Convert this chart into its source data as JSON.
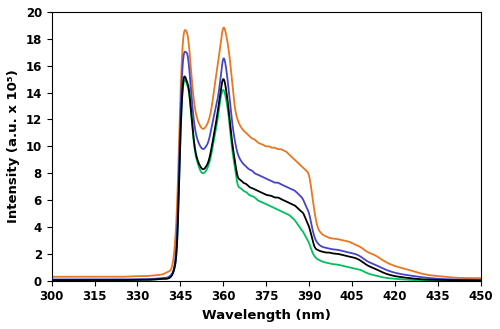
{
  "title": "",
  "xlabel": "Wavelength (nm)",
  "ylabel": "Intensity (a.u. x 10⁵)",
  "xlim": [
    300,
    450
  ],
  "ylim": [
    0,
    20
  ],
  "xticks": [
    300,
    315,
    330,
    345,
    360,
    375,
    390,
    405,
    420,
    435,
    450
  ],
  "yticks": [
    0,
    2,
    4,
    6,
    8,
    10,
    12,
    14,
    16,
    18,
    20
  ],
  "colors": {
    "orange": "#E87722",
    "blue": "#4545C8",
    "black": "#000000",
    "green": "#00C060"
  },
  "line_width": 1.3,
  "background": "#ffffff",
  "series": {
    "orange": {
      "x": [
        300,
        305,
        310,
        315,
        320,
        325,
        330,
        333,
        336,
        339,
        341,
        342,
        343,
        344,
        345,
        346,
        347,
        347.5,
        348,
        349,
        350,
        351,
        352,
        353,
        354,
        355,
        356,
        357,
        358,
        359,
        360,
        361,
        362,
        363,
        364,
        365,
        366,
        367,
        368,
        369,
        370,
        371,
        372,
        373,
        374,
        375,
        376,
        377,
        378,
        379,
        380,
        381,
        382,
        383,
        384,
        385,
        386,
        387,
        388,
        389,
        390,
        391,
        392,
        393,
        394,
        395,
        396,
        397,
        398,
        400,
        402,
        404,
        406,
        408,
        410,
        413,
        416,
        420,
        425,
        430,
        435,
        440,
        445,
        450
      ],
      "y": [
        0.3,
        0.3,
        0.3,
        0.3,
        0.3,
        0.3,
        0.35,
        0.35,
        0.4,
        0.5,
        0.7,
        1.0,
        2.5,
        6.5,
        13.5,
        18.0,
        18.6,
        18.3,
        17.5,
        15.0,
        13.0,
        12.0,
        11.5,
        11.3,
        11.5,
        12.0,
        13.0,
        14.5,
        16.0,
        17.5,
        18.8,
        18.3,
        17.0,
        15.0,
        13.0,
        12.0,
        11.5,
        11.2,
        11.0,
        10.8,
        10.6,
        10.5,
        10.3,
        10.2,
        10.1,
        10.0,
        10.0,
        9.9,
        9.9,
        9.8,
        9.8,
        9.7,
        9.6,
        9.4,
        9.2,
        9.0,
        8.8,
        8.6,
        8.4,
        8.2,
        7.8,
        6.5,
        5.0,
        4.0,
        3.6,
        3.4,
        3.3,
        3.2,
        3.15,
        3.1,
        3.0,
        2.9,
        2.7,
        2.5,
        2.2,
        1.9,
        1.5,
        1.1,
        0.8,
        0.5,
        0.35,
        0.25,
        0.2,
        0.2
      ]
    },
    "blue": {
      "x": [
        300,
        305,
        310,
        315,
        320,
        325,
        330,
        333,
        336,
        339,
        341,
        342,
        343,
        344,
        345,
        346,
        347,
        347.5,
        348,
        349,
        350,
        351,
        352,
        353,
        354,
        355,
        356,
        357,
        358,
        359,
        360,
        361,
        362,
        363,
        364,
        365,
        366,
        367,
        368,
        369,
        370,
        371,
        372,
        373,
        374,
        375,
        376,
        377,
        378,
        379,
        380,
        381,
        382,
        383,
        384,
        385,
        386,
        387,
        388,
        389,
        390,
        391,
        392,
        393,
        394,
        395,
        396,
        397,
        398,
        400,
        402,
        404,
        406,
        408,
        410,
        413,
        416,
        420,
        425,
        430,
        435,
        440,
        445,
        450
      ],
      "y": [
        0.1,
        0.1,
        0.1,
        0.1,
        0.1,
        0.1,
        0.12,
        0.12,
        0.15,
        0.2,
        0.3,
        0.5,
        1.2,
        4.5,
        12.0,
        16.5,
        17.0,
        16.8,
        16.0,
        13.5,
        11.5,
        10.5,
        10.0,
        9.8,
        10.0,
        10.5,
        11.5,
        12.5,
        13.5,
        15.0,
        16.5,
        15.8,
        14.0,
        12.0,
        10.5,
        9.5,
        9.0,
        8.7,
        8.5,
        8.3,
        8.2,
        8.0,
        7.9,
        7.8,
        7.7,
        7.6,
        7.5,
        7.4,
        7.3,
        7.3,
        7.2,
        7.1,
        7.0,
        6.9,
        6.8,
        6.7,
        6.5,
        6.3,
        6.0,
        5.5,
        5.0,
        4.0,
        3.2,
        2.8,
        2.6,
        2.5,
        2.45,
        2.4,
        2.35,
        2.3,
        2.2,
        2.1,
        2.0,
        1.8,
        1.5,
        1.2,
        0.9,
        0.6,
        0.4,
        0.25,
        0.15,
        0.1,
        0.08,
        0.07
      ]
    },
    "black": {
      "x": [
        300,
        305,
        310,
        315,
        320,
        325,
        330,
        333,
        336,
        339,
        341,
        342,
        343,
        344,
        345,
        346,
        347,
        347.5,
        348,
        349,
        350,
        351,
        352,
        353,
        354,
        355,
        356,
        357,
        358,
        359,
        360,
        361,
        362,
        363,
        364,
        365,
        366,
        367,
        368,
        369,
        370,
        371,
        372,
        373,
        374,
        375,
        376,
        377,
        378,
        379,
        380,
        381,
        382,
        383,
        384,
        385,
        386,
        387,
        388,
        389,
        390,
        391,
        392,
        393,
        394,
        395,
        396,
        397,
        398,
        400,
        402,
        404,
        406,
        408,
        410,
        413,
        416,
        420,
        425,
        430,
        435,
        440,
        445,
        450
      ],
      "y": [
        0.05,
        0.05,
        0.05,
        0.05,
        0.05,
        0.05,
        0.07,
        0.07,
        0.1,
        0.15,
        0.2,
        0.4,
        1.0,
        3.5,
        10.5,
        14.8,
        15.0,
        14.7,
        14.2,
        12.0,
        10.0,
        9.0,
        8.5,
        8.3,
        8.5,
        9.0,
        10.0,
        11.2,
        12.5,
        14.0,
        15.0,
        14.2,
        12.5,
        10.5,
        9.0,
        7.8,
        7.5,
        7.3,
        7.2,
        7.0,
        6.9,
        6.8,
        6.7,
        6.6,
        6.5,
        6.4,
        6.35,
        6.3,
        6.2,
        6.2,
        6.1,
        6.0,
        5.9,
        5.8,
        5.7,
        5.6,
        5.4,
        5.2,
        5.0,
        4.5,
        4.0,
        3.2,
        2.5,
        2.3,
        2.2,
        2.15,
        2.1,
        2.1,
        2.05,
        2.0,
        1.9,
        1.8,
        1.7,
        1.5,
        1.2,
        0.9,
        0.6,
        0.35,
        0.2,
        0.1,
        0.07,
        0.05,
        0.03,
        0.02
      ]
    },
    "green": {
      "x": [
        300,
        305,
        310,
        315,
        320,
        325,
        330,
        333,
        336,
        339,
        341,
        342,
        343,
        344,
        345,
        346,
        347,
        347.5,
        348,
        349,
        350,
        351,
        352,
        353,
        354,
        355,
        356,
        357,
        358,
        359,
        360,
        361,
        362,
        363,
        364,
        365,
        366,
        367,
        368,
        369,
        370,
        371,
        372,
        373,
        374,
        375,
        376,
        377,
        378,
        379,
        380,
        381,
        382,
        383,
        384,
        385,
        386,
        387,
        388,
        389,
        390,
        391,
        392,
        393,
        394,
        395,
        396,
        397,
        398,
        400,
        402,
        404,
        406,
        408,
        410,
        413,
        416,
        420,
        425,
        430,
        435,
        440,
        445,
        450
      ],
      "y": [
        0.05,
        0.05,
        0.05,
        0.05,
        0.05,
        0.05,
        0.07,
        0.07,
        0.1,
        0.15,
        0.2,
        0.4,
        1.0,
        3.5,
        10.5,
        14.5,
        14.8,
        14.5,
        14.0,
        11.8,
        9.8,
        8.8,
        8.2,
        8.0,
        8.2,
        8.7,
        9.6,
        10.8,
        12.0,
        13.5,
        14.2,
        13.5,
        12.0,
        10.0,
        8.5,
        7.2,
        6.9,
        6.7,
        6.6,
        6.4,
        6.3,
        6.2,
        6.0,
        5.9,
        5.8,
        5.7,
        5.6,
        5.5,
        5.4,
        5.3,
        5.2,
        5.1,
        5.0,
        4.9,
        4.7,
        4.5,
        4.2,
        3.9,
        3.6,
        3.2,
        2.8,
        2.2,
        1.8,
        1.6,
        1.5,
        1.4,
        1.35,
        1.3,
        1.25,
        1.2,
        1.1,
        1.0,
        0.9,
        0.8,
        0.6,
        0.4,
        0.25,
        0.15,
        0.07,
        0.03,
        0.02,
        0.01,
        0.01,
        0.01
      ]
    }
  }
}
